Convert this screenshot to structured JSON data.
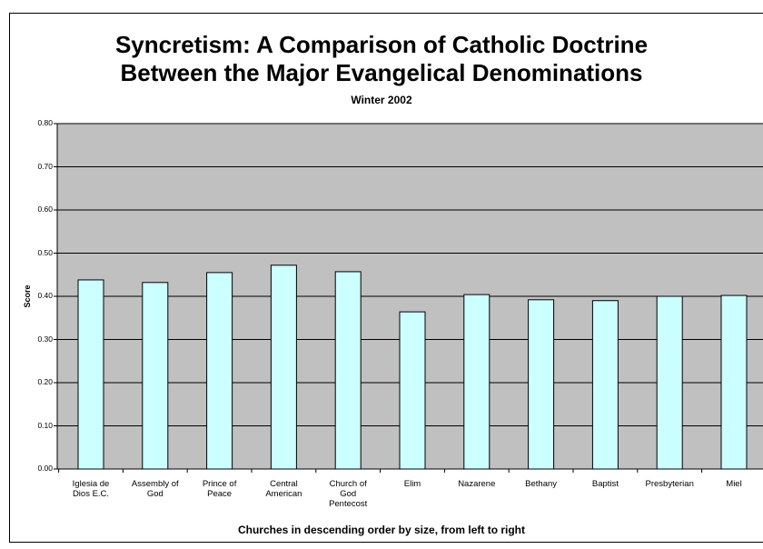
{
  "chart_data": {
    "type": "bar",
    "title": "Syncretism:  A Comparison of Catholic Doctrine\nBetween the Major Evangelical Denominations",
    "subtitle": "Winter 2002",
    "y_label": "Score",
    "x_label": "Churches in descending order by size, from left to right",
    "categories": [
      "Iglesia de\nDios E.C.",
      "Assembly of\nGod",
      "Prince of\nPeace",
      "Central\nAmerican",
      "Church of\nGod\nPentecost",
      "Elim",
      "Nazarene",
      "Bethany",
      "Baptist",
      "Presbyterian",
      "Miel"
    ],
    "values": [
      0.438,
      0.432,
      0.455,
      0.472,
      0.457,
      0.364,
      0.404,
      0.392,
      0.39,
      0.4,
      0.402
    ],
    "color": "#ccffff",
    "ylim": [
      0,
      0.8
    ],
    "yticks": [
      {
        "value": 0,
        "label": "0.00"
      },
      {
        "value": 0.1,
        "label": "0.10"
      },
      {
        "value": 0.2,
        "label": "0.20"
      },
      {
        "value": 0.3,
        "label": "0.30"
      },
      {
        "value": 0.4,
        "label": "0.40"
      },
      {
        "value": 0.5,
        "label": "0.50"
      },
      {
        "value": 0.6,
        "label": "0.60"
      },
      {
        "value": 0.7,
        "label": "0.70"
      },
      {
        "value": 0.8,
        "label": "0.80"
      }
    ],
    "grid": true
  }
}
